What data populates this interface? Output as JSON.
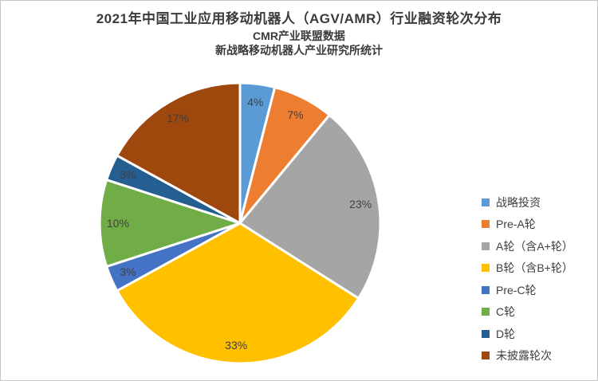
{
  "page": {
    "title": "2021年中国工业应用移动机器人（AGV/AMR）行业融资轮次分布",
    "subtitle_line1": "CMR产业联盟数据",
    "subtitle_line2": "新战略移动机器人产业研究所统计"
  },
  "chart_data": {
    "type": "pie",
    "title": "2021年中国工业应用移动机器人（AGV/AMR）行业融资轮次分布",
    "subtitles": [
      "CMR产业联盟数据",
      "新战略移动机器人产业研究所统计"
    ],
    "unit": "percent",
    "start_angle_deg": 0,
    "direction": "clockwise",
    "legend_position": "right",
    "data_label_position": "inside-end",
    "data_label_color": "#404040",
    "slice_border_color": "#ffffff",
    "slices": [
      {
        "label": "战略投资",
        "value_pct": 4,
        "display": "4%",
        "color": "#5B9BD5"
      },
      {
        "label": "Pre-A轮",
        "value_pct": 7,
        "display": "7%",
        "color": "#ED7D31"
      },
      {
        "label": "A轮（含A+轮）",
        "value_pct": 23,
        "display": "23%",
        "color": "#A5A5A5"
      },
      {
        "label": "B轮（含B+轮）",
        "value_pct": 33,
        "display": "33%",
        "color": "#FFC000"
      },
      {
        "label": "Pre-C轮",
        "value_pct": 3,
        "display": "3%",
        "color": "#4472C4"
      },
      {
        "label": "C轮",
        "value_pct": 10,
        "display": "10%",
        "color": "#70AD47"
      },
      {
        "label": "D轮",
        "value_pct": 3,
        "display": "3%",
        "color": "#255E91"
      },
      {
        "label": "未披露轮次",
        "value_pct": 17,
        "display": "17%",
        "color": "#9E480E"
      }
    ]
  }
}
